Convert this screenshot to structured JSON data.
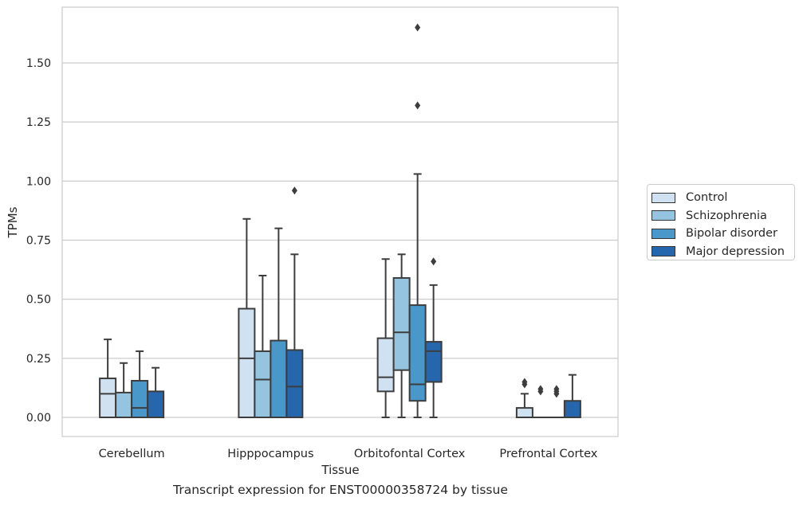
{
  "colors": {
    "control": "#d0e1f2",
    "schizophrenia": "#94c4df",
    "bipolar": "#4a98c9",
    "depression": "#2666ac",
    "grid": "#cccccc",
    "stroke": "#3d3d3d"
  },
  "caption": "Transcript expression for ENST00000358724 by tissue",
  "chart_data": {
    "type": "box",
    "title": "",
    "xlabel": "Tissue",
    "ylabel": "TPMs",
    "ylim": [
      -0.08,
      1.74
    ],
    "y_ticks": [
      0.0,
      0.25,
      0.5,
      0.75,
      1.0,
      1.25,
      1.5
    ],
    "y_tick_labels": [
      "0.00",
      "0.25",
      "0.50",
      "0.75",
      "1.00",
      "1.25",
      "1.50"
    ],
    "grid": true,
    "legend_position": "right",
    "categories": [
      "Cerebellum",
      "Hipppocampus",
      "Orbitofontal Cortex",
      "Prefrontal Cortex"
    ],
    "series": [
      {
        "name": "Control",
        "color_key": "control",
        "boxes": [
          {
            "min": 0.0,
            "q1": 0.0,
            "median": 0.1,
            "q3": 0.165,
            "max": 0.33,
            "outliers": []
          },
          {
            "min": 0.0,
            "q1": 0.0,
            "median": 0.25,
            "q3": 0.46,
            "max": 0.84,
            "outliers": []
          },
          {
            "min": 0.0,
            "q1": 0.11,
            "median": 0.17,
            "q3": 0.335,
            "max": 0.67,
            "outliers": []
          },
          {
            "min": 0.0,
            "q1": 0.0,
            "median": 0.0,
            "q3": 0.04,
            "max": 0.1,
            "outliers": [
              0.14,
              0.15
            ]
          }
        ]
      },
      {
        "name": "Schizophrenia",
        "color_key": "schizophrenia",
        "boxes": [
          {
            "min": 0.0,
            "q1": 0.0,
            "median": 0.0,
            "q3": 0.105,
            "max": 0.23,
            "outliers": []
          },
          {
            "min": 0.0,
            "q1": 0.0,
            "median": 0.16,
            "q3": 0.28,
            "max": 0.6,
            "outliers": []
          },
          {
            "min": 0.0,
            "q1": 0.2,
            "median": 0.36,
            "q3": 0.59,
            "max": 0.69,
            "outliers": []
          },
          {
            "min": 0.0,
            "q1": 0.0,
            "median": 0.0,
            "q3": 0.0,
            "max": 0.0,
            "outliers": [
              0.11,
              0.12
            ]
          }
        ]
      },
      {
        "name": "Bipolar disorder",
        "color_key": "bipolar",
        "boxes": [
          {
            "min": 0.0,
            "q1": 0.0,
            "median": 0.04,
            "q3": 0.155,
            "max": 0.28,
            "outliers": []
          },
          {
            "min": 0.0,
            "q1": 0.0,
            "median": 0.0,
            "q3": 0.325,
            "max": 0.8,
            "outliers": []
          },
          {
            "min": 0.0,
            "q1": 0.07,
            "median": 0.14,
            "q3": 0.475,
            "max": 1.03,
            "outliers": [
              1.32,
              1.65
            ]
          },
          {
            "min": 0.0,
            "q1": 0.0,
            "median": 0.0,
            "q3": 0.0,
            "max": 0.0,
            "outliers": [
              0.1,
              0.11,
              0.12
            ]
          }
        ]
      },
      {
        "name": "Major depression",
        "color_key": "depression",
        "boxes": [
          {
            "min": 0.0,
            "q1": 0.0,
            "median": 0.0,
            "q3": 0.11,
            "max": 0.21,
            "outliers": []
          },
          {
            "min": 0.0,
            "q1": 0.0,
            "median": 0.13,
            "q3": 0.285,
            "max": 0.69,
            "outliers": [
              0.96
            ]
          },
          {
            "min": 0.0,
            "q1": 0.15,
            "median": 0.28,
            "q3": 0.32,
            "max": 0.56,
            "outliers": [
              0.66
            ]
          },
          {
            "min": 0.0,
            "q1": 0.0,
            "median": 0.0,
            "q3": 0.07,
            "max": 0.18,
            "outliers": []
          }
        ]
      }
    ]
  }
}
